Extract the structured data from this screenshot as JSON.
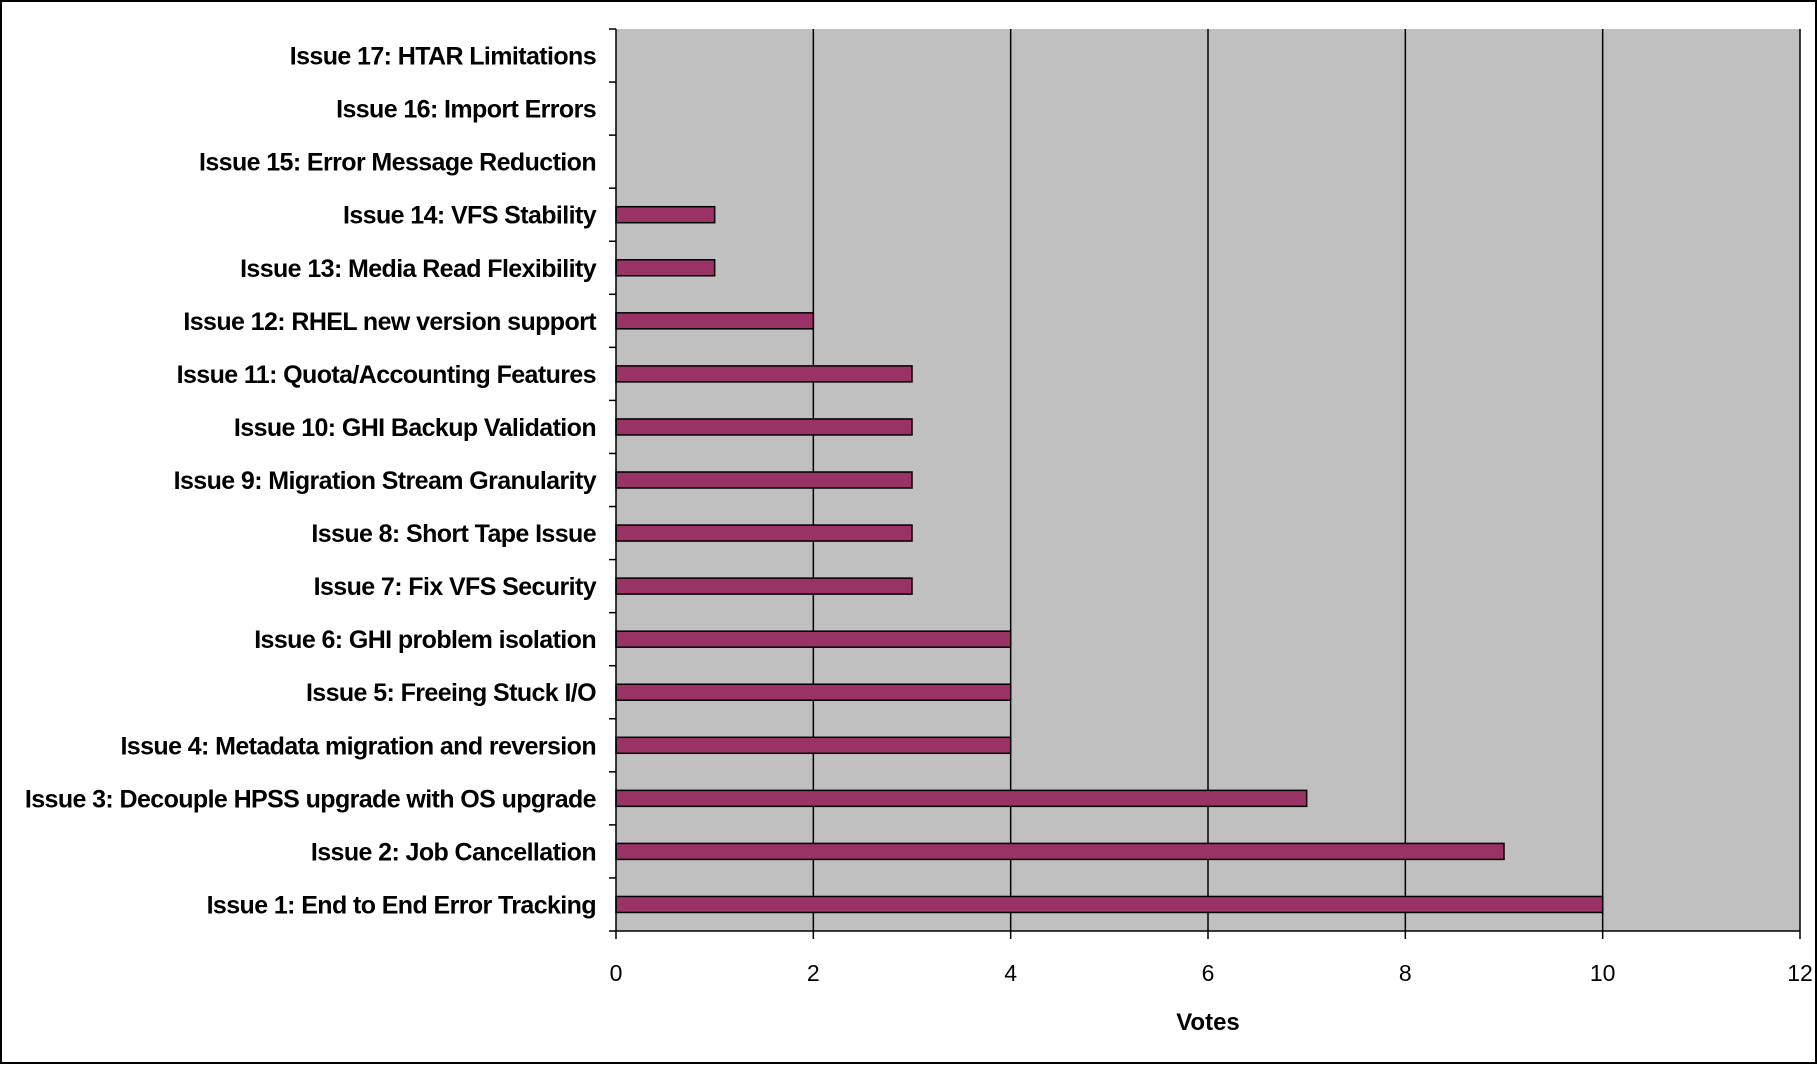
{
  "chart_data": {
    "type": "bar",
    "orientation": "horizontal",
    "title": "",
    "xlabel": "Votes",
    "ylabel": "",
    "xlim": [
      0,
      12
    ],
    "x_ticks": [
      0,
      2,
      4,
      6,
      8,
      10,
      12
    ],
    "grid": "vertical gridlines at each tick",
    "legend": "none",
    "colors": {
      "bar": "#993366",
      "plot_background": "#c0c0c0",
      "gridline": "#000000"
    },
    "categories": [
      "Issue 1: End to End Error Tracking",
      "Issue 2: Job Cancellation",
      "Issue 3: Decouple HPSS upgrade with OS upgrade",
      "Issue 4: Metadata migration and reversion",
      "Issue 5: Freeing Stuck I/O",
      "Issue 6: GHI problem isolation",
      "Issue 7: Fix VFS Security",
      "Issue 8: Short Tape Issue",
      "Issue 9: Migration Stream Granularity",
      "Issue 10: GHI Backup Validation",
      "Issue 11: Quota/Accounting Features",
      "Issue 12: RHEL new version support",
      "Issue 13: Media Read Flexibility",
      "Issue 14: VFS Stability",
      "Issue 15: Error Message Reduction",
      "Issue 16: Import Errors",
      "Issue 17: HTAR Limitations"
    ],
    "values": [
      10,
      9,
      7,
      4,
      4,
      4,
      3,
      3,
      3,
      3,
      3,
      2,
      1,
      1,
      0,
      0,
      0
    ]
  }
}
